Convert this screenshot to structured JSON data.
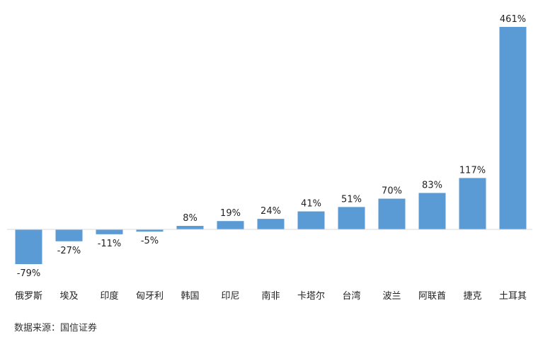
{
  "chart_data": {
    "type": "bar",
    "categories": [
      "俄罗斯",
      "埃及",
      "印度",
      "匈牙利",
      "韩国",
      "印尼",
      "南非",
      "卡塔尔",
      "台湾",
      "波兰",
      "阿联酋",
      "捷克",
      "土耳其"
    ],
    "values": [
      -79,
      -27,
      -11,
      -5,
      8,
      19,
      24,
      41,
      51,
      70,
      83,
      117,
      461
    ],
    "value_suffix": "%",
    "title": "",
    "xlabel": "",
    "ylabel": "",
    "ylim": [
      -79,
      461
    ],
    "grid": false,
    "legend": "none",
    "bar_color": "#5b9bd5",
    "data_labels": [
      "-79%",
      "-27%",
      "-11%",
      "-5%",
      "8%",
      "19%",
      "24%",
      "41%",
      "51%",
      "70%",
      "83%",
      "117%",
      "461%"
    ]
  },
  "source": "数据来源：国信证券"
}
